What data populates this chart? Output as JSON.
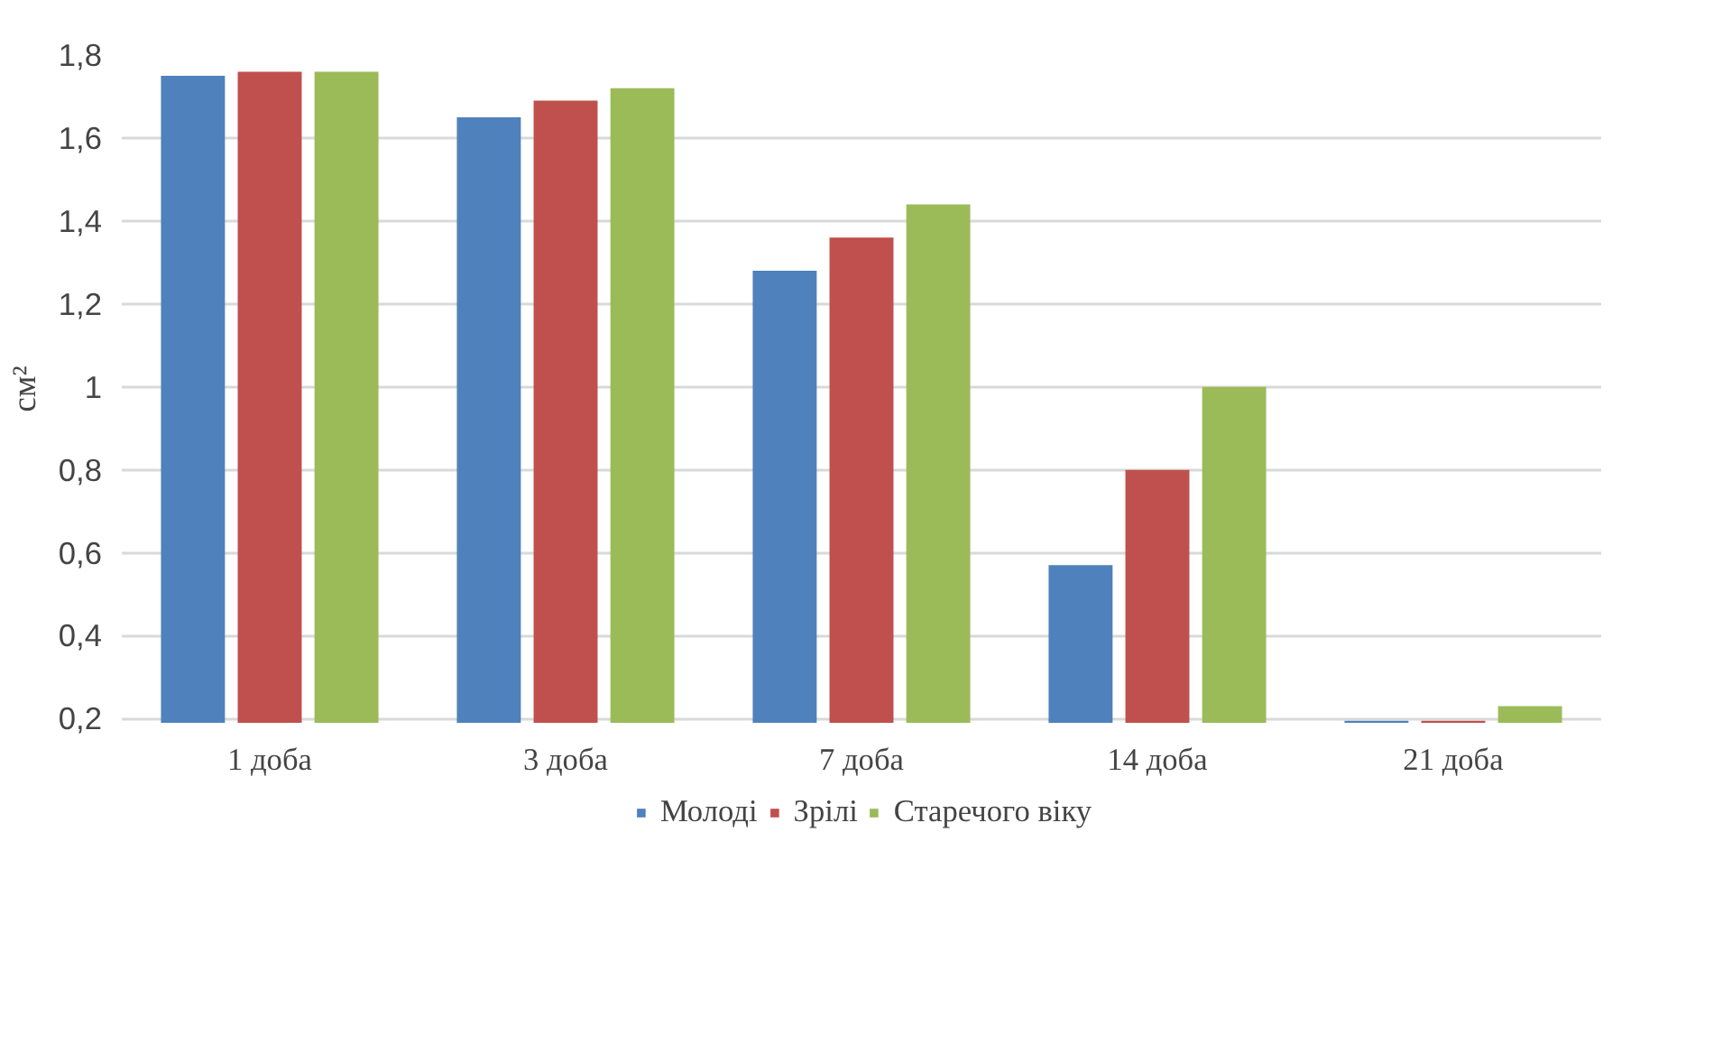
{
  "chart_data": {
    "type": "bar",
    "ylabel": "см²",
    "categories": [
      "1 доба",
      "3 доба",
      "7 доба",
      "14 доба",
      "21 доба"
    ],
    "series": [
      {
        "name": "Молоді",
        "color": "#4f81bd",
        "values": [
          1.75,
          1.65,
          1.28,
          0.57,
          0.195
        ]
      },
      {
        "name": "Зрілі",
        "color": "#c0504d",
        "values": [
          1.76,
          1.69,
          1.36,
          0.8,
          0.195
        ]
      },
      {
        "name": "Старечого віку",
        "color": "#9bbb59",
        "values": [
          1.76,
          1.72,
          1.44,
          1.0,
          0.23
        ]
      }
    ],
    "ylim": [
      0.19,
      1.8
    ],
    "yticks": [
      {
        "value": 0.2,
        "label": "0,2"
      },
      {
        "value": 0.4,
        "label": "0,4"
      },
      {
        "value": 0.6,
        "label": "0,6"
      },
      {
        "value": 0.8,
        "label": "0,8"
      },
      {
        "value": 1,
        "label": "1"
      },
      {
        "value": 1.2,
        "label": "1,2"
      },
      {
        "value": 1.4,
        "label": "1,4"
      },
      {
        "value": 1.6,
        "label": "1,6"
      },
      {
        "value": 1.8,
        "label": "1,8"
      }
    ],
    "grid": "y",
    "legend": "bottom"
  }
}
